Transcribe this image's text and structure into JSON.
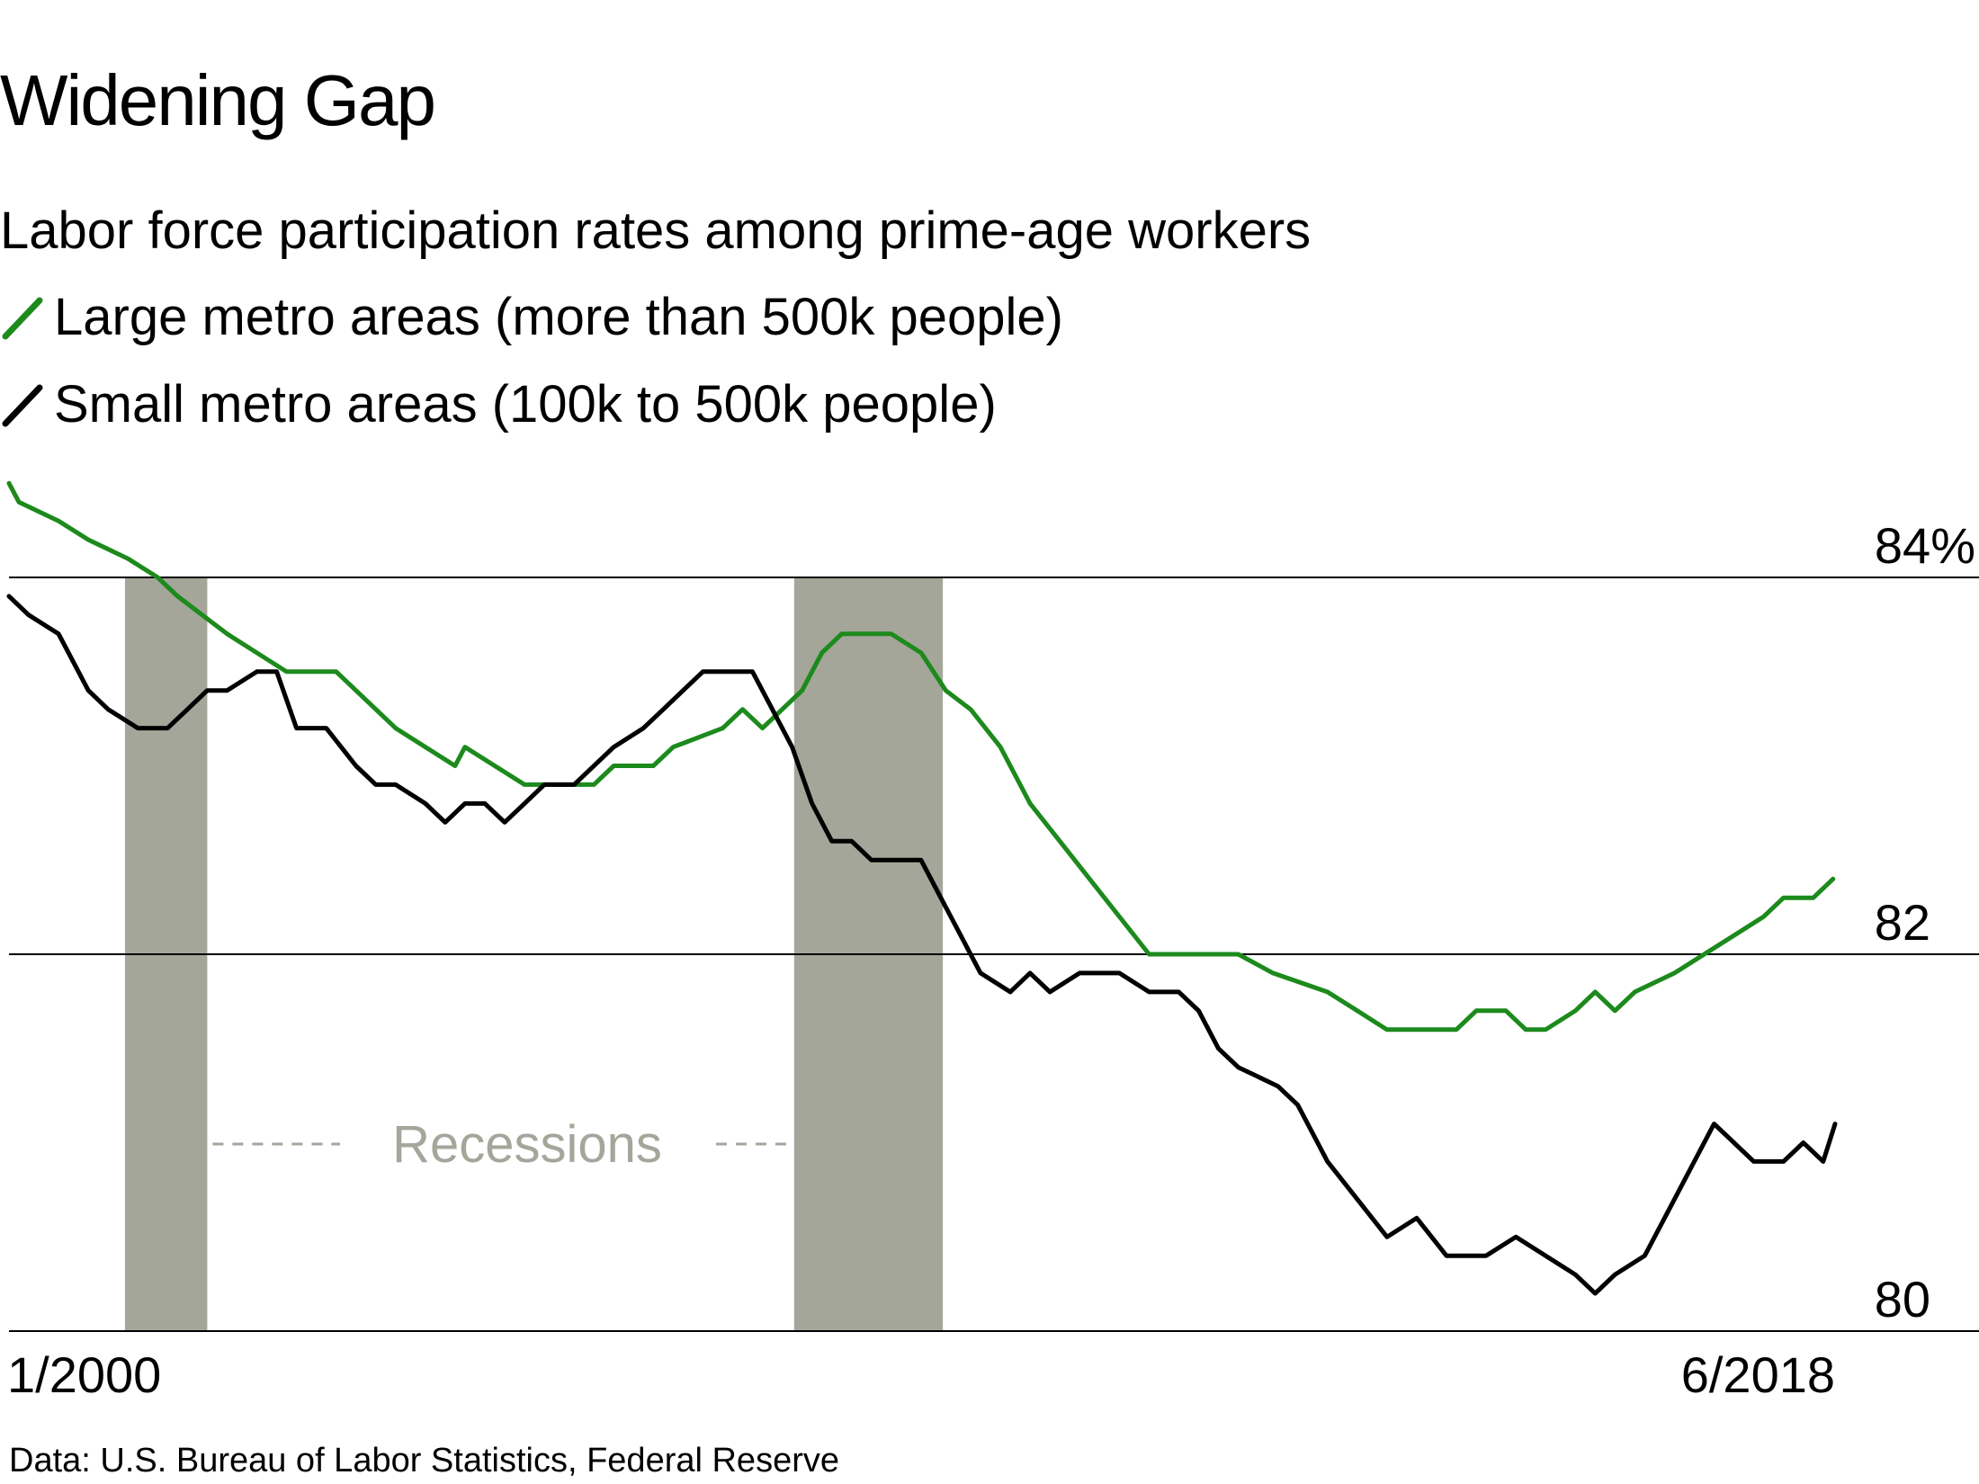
{
  "header": {
    "title": "Widening Gap",
    "subtitle": "Labor force participation rates among prime-age workers"
  },
  "footer": {
    "source": "Data: U.S. Bureau of Labor Statistics, Federal Reserve"
  },
  "colors": {
    "large": "#1c8a1c",
    "small": "#000000",
    "recession": "#a4a69a",
    "recession_label": "#a4a69a",
    "grid": "#000000"
  },
  "chart_data": {
    "type": "line",
    "title": "Widening Gap",
    "subtitle": "Labor force participation rates among prime-age workers",
    "xlabel": "",
    "ylabel": "",
    "x_range": [
      2000.0,
      2018.5
    ],
    "ylim": [
      80,
      84.6
    ],
    "y_ticks": [
      {
        "value": 84,
        "label": "84%"
      },
      {
        "value": 82,
        "label": "82"
      },
      {
        "value": 80,
        "label": "80"
      }
    ],
    "x_ticks": [
      {
        "value": 2000.0,
        "label": "1/2000"
      },
      {
        "value": 2018.42,
        "label": "6/2018"
      }
    ],
    "recessions": [
      {
        "start": 2001.17,
        "end": 2002.0
      },
      {
        "start": 2007.92,
        "end": 2009.42
      }
    ],
    "recession_label": "Recessions",
    "series": [
      {
        "name": "Large metro areas (more than 500k people)",
        "color": "#1c8a1c",
        "points": [
          [
            2000.0,
            84.5
          ],
          [
            2000.1,
            84.4
          ],
          [
            2000.5,
            84.3
          ],
          [
            2000.8,
            84.2
          ],
          [
            2001.2,
            84.1
          ],
          [
            2001.5,
            84.0
          ],
          [
            2001.7,
            83.9
          ],
          [
            2001.95,
            83.8
          ],
          [
            2002.2,
            83.7
          ],
          [
            2002.5,
            83.6
          ],
          [
            2002.8,
            83.5
          ],
          [
            2003.3,
            83.5
          ],
          [
            2003.5,
            83.4
          ],
          [
            2003.7,
            83.3
          ],
          [
            2003.9,
            83.2
          ],
          [
            2004.2,
            83.1
          ],
          [
            2004.5,
            83.0
          ],
          [
            2004.6,
            83.1
          ],
          [
            2004.9,
            83.0
          ],
          [
            2005.2,
            82.9
          ],
          [
            2005.9,
            82.9
          ],
          [
            2006.1,
            83.0
          ],
          [
            2006.5,
            83.0
          ],
          [
            2006.7,
            83.1
          ],
          [
            2007.2,
            83.2
          ],
          [
            2007.4,
            83.3
          ],
          [
            2007.6,
            83.2
          ],
          [
            2007.8,
            83.3
          ],
          [
            2008.0,
            83.4
          ],
          [
            2008.2,
            83.6
          ],
          [
            2008.4,
            83.7
          ],
          [
            2008.9,
            83.7
          ],
          [
            2009.2,
            83.6
          ],
          [
            2009.45,
            83.4
          ],
          [
            2009.7,
            83.3
          ],
          [
            2010.0,
            83.1
          ],
          [
            2010.3,
            82.8
          ],
          [
            2010.6,
            82.6
          ],
          [
            2010.9,
            82.4
          ],
          [
            2011.2,
            82.2
          ],
          [
            2011.5,
            82.0
          ],
          [
            2012.0,
            82.0
          ],
          [
            2012.4,
            82.0
          ],
          [
            2012.75,
            81.9
          ],
          [
            2013.3,
            81.8
          ],
          [
            2013.6,
            81.7
          ],
          [
            2013.9,
            81.6
          ],
          [
            2014.3,
            81.6
          ],
          [
            2014.6,
            81.6
          ],
          [
            2014.8,
            81.7
          ],
          [
            2015.1,
            81.7
          ],
          [
            2015.3,
            81.6
          ],
          [
            2015.5,
            81.6
          ],
          [
            2015.8,
            81.7
          ],
          [
            2016.0,
            81.8
          ],
          [
            2016.2,
            81.7
          ],
          [
            2016.4,
            81.8
          ],
          [
            2016.8,
            81.9
          ],
          [
            2017.1,
            82.0
          ],
          [
            2017.4,
            82.1
          ],
          [
            2017.7,
            82.2
          ],
          [
            2017.9,
            82.3
          ],
          [
            2018.2,
            82.3
          ],
          [
            2018.4,
            82.4
          ]
        ]
      },
      {
        "name": "Small metro areas (100k to 500k people)",
        "color": "#000000",
        "points": [
          [
            2000.0,
            83.9
          ],
          [
            2000.2,
            83.8
          ],
          [
            2000.5,
            83.7
          ],
          [
            2000.8,
            83.4
          ],
          [
            2001.0,
            83.3
          ],
          [
            2001.3,
            83.2
          ],
          [
            2001.6,
            83.2
          ],
          [
            2001.8,
            83.3
          ],
          [
            2002.0,
            83.4
          ],
          [
            2002.2,
            83.4
          ],
          [
            2002.5,
            83.5
          ],
          [
            2002.7,
            83.5
          ],
          [
            2002.9,
            83.2
          ],
          [
            2003.2,
            83.2
          ],
          [
            2003.5,
            83.0
          ],
          [
            2003.7,
            82.9
          ],
          [
            2003.9,
            82.9
          ],
          [
            2004.2,
            82.8
          ],
          [
            2004.4,
            82.7
          ],
          [
            2004.6,
            82.8
          ],
          [
            2004.8,
            82.8
          ],
          [
            2005.0,
            82.7
          ],
          [
            2005.2,
            82.8
          ],
          [
            2005.4,
            82.9
          ],
          [
            2005.7,
            82.9
          ],
          [
            2005.9,
            83.0
          ],
          [
            2006.1,
            83.1
          ],
          [
            2006.4,
            83.2
          ],
          [
            2006.6,
            83.3
          ],
          [
            2006.8,
            83.4
          ],
          [
            2007.0,
            83.5
          ],
          [
            2007.5,
            83.5
          ],
          [
            2007.7,
            83.3
          ],
          [
            2007.9,
            83.1
          ],
          [
            2008.1,
            82.8
          ],
          [
            2008.3,
            82.6
          ],
          [
            2008.5,
            82.6
          ],
          [
            2008.7,
            82.5
          ],
          [
            2009.0,
            82.5
          ],
          [
            2009.2,
            82.5
          ],
          [
            2009.4,
            82.3
          ],
          [
            2009.6,
            82.1
          ],
          [
            2009.8,
            81.9
          ],
          [
            2010.1,
            81.8
          ],
          [
            2010.3,
            81.9
          ],
          [
            2010.5,
            81.8
          ],
          [
            2010.8,
            81.9
          ],
          [
            2011.2,
            81.9
          ],
          [
            2011.5,
            81.8
          ],
          [
            2011.8,
            81.8
          ],
          [
            2012.0,
            81.7
          ],
          [
            2012.2,
            81.5
          ],
          [
            2012.4,
            81.4
          ],
          [
            2012.8,
            81.3
          ],
          [
            2013.0,
            81.2
          ],
          [
            2013.3,
            80.9
          ],
          [
            2013.6,
            80.7
          ],
          [
            2013.9,
            80.5
          ],
          [
            2014.2,
            80.6
          ],
          [
            2014.5,
            80.4
          ],
          [
            2014.9,
            80.4
          ],
          [
            2015.2,
            80.5
          ],
          [
            2015.5,
            80.4
          ],
          [
            2015.8,
            80.3
          ],
          [
            2016.0,
            80.2
          ],
          [
            2016.2,
            80.3
          ],
          [
            2016.5,
            80.4
          ],
          [
            2016.8,
            80.7
          ],
          [
            2017.0,
            80.9
          ],
          [
            2017.2,
            81.1
          ],
          [
            2017.4,
            81.0
          ],
          [
            2017.6,
            80.9
          ],
          [
            2017.9,
            80.9
          ],
          [
            2018.1,
            81.0
          ],
          [
            2018.3,
            80.9
          ],
          [
            2018.42,
            81.1
          ]
        ]
      }
    ]
  }
}
